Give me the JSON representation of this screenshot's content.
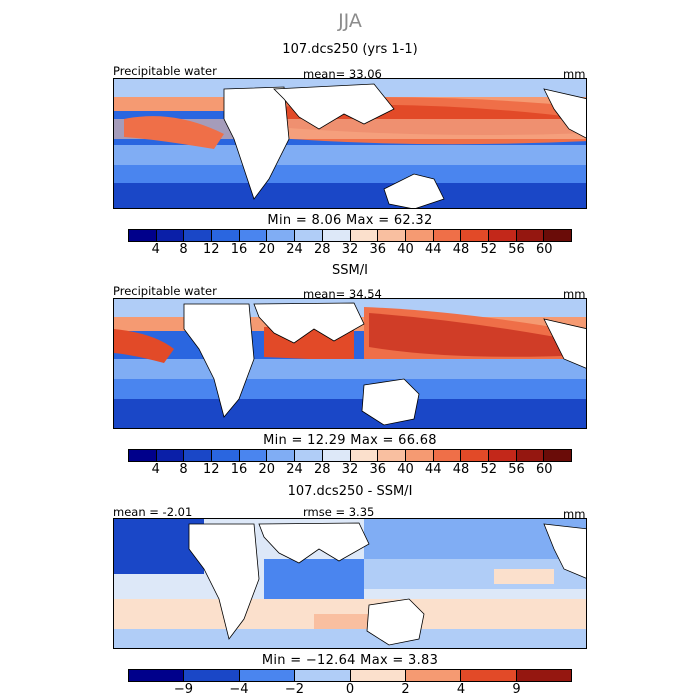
{
  "figure": {
    "season": "JJA",
    "panels": [
      {
        "title": "107.dcs250 (yrs 1-1)",
        "left_label": "Precipitable water",
        "center_label": "mean=   33.06",
        "right_label": "mm",
        "stats": "Min =    8.06  Max =   62.32",
        "colorbar_ticks": [
          "4",
          "8",
          "12",
          "16",
          "20",
          "24",
          "28",
          "32",
          "36",
          "40",
          "44",
          "48",
          "52",
          "56",
          "60"
        ]
      },
      {
        "title": "SSM/I",
        "left_label": "Precipitable water",
        "center_label": "mean=   34.54",
        "right_label": "mm",
        "stats": "Min =   12.29  Max =   66.68",
        "colorbar_ticks": [
          "4",
          "8",
          "12",
          "16",
          "20",
          "24",
          "28",
          "32",
          "36",
          "40",
          "44",
          "48",
          "52",
          "56",
          "60"
        ]
      },
      {
        "title": "107.dcs250 - SSM/I",
        "left_label": "mean =   -2.01",
        "center_label": "rmse =    3.35",
        "right_label": "mm",
        "stats": "Min = −12.64  Max =    3.83",
        "colorbar_ticks": [
          "−9",
          "−4",
          "−2",
          "0",
          "2",
          "4",
          "9"
        ]
      }
    ]
  },
  "chart_data": [
    {
      "type": "heatmap",
      "title": "107.dcs250 (yrs 1-1)",
      "variable": "Precipitable water",
      "units": "mm",
      "mean": 33.06,
      "min": 8.06,
      "max": 62.32,
      "contour_levels": [
        4,
        8,
        12,
        16,
        20,
        24,
        28,
        32,
        36,
        40,
        44,
        48,
        52,
        56,
        60
      ],
      "colors": [
        "#00008b",
        "#0a1fa8",
        "#1a47c7",
        "#2a66e0",
        "#4a85ef",
        "#80adf4",
        "#b0cdf7",
        "#dde8f8",
        "#fbe0cc",
        "#f9bfa0",
        "#f59a72",
        "#ef6f48",
        "#e24a28",
        "#c3281a",
        "#951710",
        "#6a0c08"
      ]
    },
    {
      "type": "heatmap",
      "title": "SSM/I",
      "variable": "Precipitable water",
      "units": "mm",
      "mean": 34.54,
      "min": 12.29,
      "max": 66.68,
      "contour_levels": [
        4,
        8,
        12,
        16,
        20,
        24,
        28,
        32,
        36,
        40,
        44,
        48,
        52,
        56,
        60
      ],
      "colors": [
        "#00008b",
        "#0a1fa8",
        "#1a47c7",
        "#2a66e0",
        "#4a85ef",
        "#80adf4",
        "#b0cdf7",
        "#dde8f8",
        "#fbe0cc",
        "#f9bfa0",
        "#f59a72",
        "#ef6f48",
        "#e24a28",
        "#c3281a",
        "#951710",
        "#6a0c08"
      ]
    },
    {
      "type": "heatmap",
      "title": "107.dcs250 - SSM/I",
      "units": "mm",
      "mean": -2.01,
      "rmse": 3.35,
      "min": -12.64,
      "max": 3.83,
      "contour_levels": [
        -9,
        -4,
        -2,
        0,
        2,
        4,
        9
      ],
      "colors": [
        "#00008b",
        "#1a47c7",
        "#4a85ef",
        "#b0cdf7",
        "#fbe0cc",
        "#f59a72",
        "#e24a28",
        "#951710"
      ]
    }
  ]
}
